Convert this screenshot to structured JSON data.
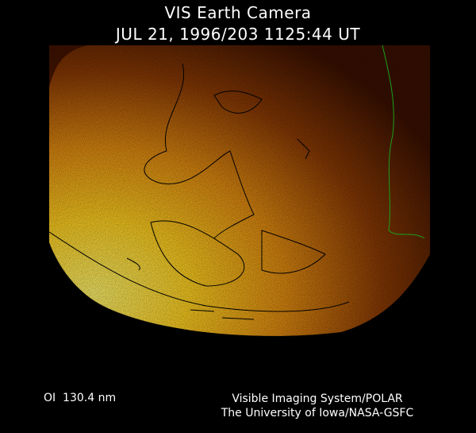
{
  "header": {
    "title": "VIS Earth Camera",
    "timestamp": "JUL 21, 1996/203 1125:44 UT"
  },
  "footer": {
    "band": "OI  130.4 nm",
    "credit_line1": "Visible Imaging System/POLAR",
    "credit_line2": "The University of Iowa/NASA-GSFC"
  },
  "colors": {
    "background": "#000000",
    "bright": "#ffe040",
    "mid": "#d87a10",
    "dark": "#4a1400",
    "coastline": "#000000",
    "coastline_alt": "#1aa01a"
  }
}
